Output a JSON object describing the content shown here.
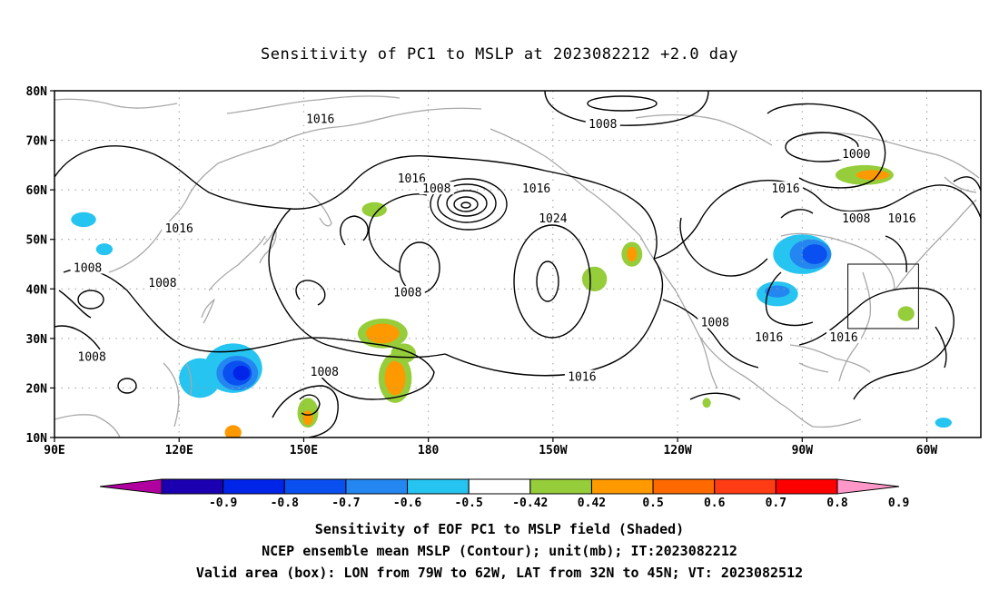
{
  "title": "Sensitivity of PC1 to MSLP at 2023082212 +2.0 day",
  "lat_labels": [
    "80N",
    "70N",
    "60N",
    "50N",
    "40N",
    "30N",
    "20N",
    "10N"
  ],
  "lon_labels": [
    "90E",
    "120E",
    "150E",
    "180",
    "150W",
    "120W",
    "90W",
    "60W"
  ],
  "contour_labels": [
    {
      "text": "1016",
      "lon": 154,
      "lat": 74
    },
    {
      "text": "1008",
      "lon": -138,
      "lat": 73
    },
    {
      "text": "1000",
      "lon": -77,
      "lat": 67
    },
    {
      "text": "1016",
      "lon": 176,
      "lat": 62
    },
    {
      "text": "1008",
      "lon": -178,
      "lat": 60
    },
    {
      "text": "1016",
      "lon": -154,
      "lat": 60
    },
    {
      "text": "1016",
      "lon": -94,
      "lat": 60
    },
    {
      "text": "1016",
      "lon": 120,
      "lat": 52
    },
    {
      "text": "1024",
      "lon": -150,
      "lat": 54
    },
    {
      "text": "1008",
      "lon": -77,
      "lat": 54
    },
    {
      "text": "1016",
      "lon": -66,
      "lat": 54
    },
    {
      "text": "1008",
      "lon": 98,
      "lat": 44
    },
    {
      "text": "1008",
      "lon": 116,
      "lat": 41
    },
    {
      "text": "1008",
      "lon": 175,
      "lat": 39
    },
    {
      "text": "1008",
      "lon": -111,
      "lat": 33
    },
    {
      "text": "1016",
      "lon": -98,
      "lat": 30
    },
    {
      "text": "1016",
      "lon": -80,
      "lat": 30
    },
    {
      "text": "1008",
      "lon": 99,
      "lat": 26
    },
    {
      "text": "1008",
      "lon": 155,
      "lat": 23
    },
    {
      "text": "1016",
      "lon": -143,
      "lat": 22
    }
  ],
  "valid_box": {
    "lon_min": -79,
    "lon_max": -62,
    "lat_min": 32,
    "lat_max": 45
  },
  "colorbar": {
    "colors": [
      "#b000a0",
      "#1a00b0",
      "#0024e8",
      "#0a50f0",
      "#2486f0",
      "#26c4f0",
      "#ffffff",
      "#96cd3a",
      "#ff9900",
      "#ff6a00",
      "#ff3c14",
      "#ff0000",
      "#ff98c8"
    ],
    "labels": [
      "-0.9",
      "-0.8",
      "-0.7",
      "-0.6",
      "-0.5",
      "-0.42",
      "0.42",
      "0.5",
      "0.6",
      "0.7",
      "0.8",
      "0.9"
    ]
  },
  "shading": [
    {
      "lon": 125,
      "lat": 22,
      "rx": 5,
      "ry": 4,
      "color": "#26c4f0"
    },
    {
      "lon": 133,
      "lat": 24,
      "rx": 7,
      "ry": 5,
      "color": "#26c4f0"
    },
    {
      "lon": 134,
      "lat": 23,
      "rx": 5,
      "ry": 3.5,
      "color": "#2486f0"
    },
    {
      "lon": 134,
      "lat": 23,
      "rx": 3.5,
      "ry": 2.5,
      "color": "#0a50f0"
    },
    {
      "lon": 135,
      "lat": 23,
      "rx": 2,
      "ry": 1.5,
      "color": "#0024e8"
    },
    {
      "lon": 97,
      "lat": 54,
      "rx": 3,
      "ry": 1.5,
      "color": "#26c4f0"
    },
    {
      "lon": 102,
      "lat": 48,
      "rx": 2,
      "ry": 1.2,
      "color": "#26c4f0"
    },
    {
      "lon": -90,
      "lat": 47,
      "rx": 7,
      "ry": 4,
      "color": "#26c4f0"
    },
    {
      "lon": -88,
      "lat": 47,
      "rx": 5,
      "ry": 3,
      "color": "#2486f0"
    },
    {
      "lon": -87,
      "lat": 47,
      "rx": 3,
      "ry": 2,
      "color": "#0a50f0"
    },
    {
      "lon": -96,
      "lat": 39,
      "rx": 5,
      "ry": 2.5,
      "color": "#26c4f0"
    },
    {
      "lon": -96,
      "lat": 39.5,
      "rx": 3,
      "ry": 1.2,
      "color": "#2486f0"
    },
    {
      "lon": -56,
      "lat": 13,
      "rx": 2,
      "ry": 1,
      "color": "#26c4f0"
    },
    {
      "lon": 169,
      "lat": 31,
      "rx": 6,
      "ry": 3,
      "color": "#96cd3a"
    },
    {
      "lon": 169,
      "lat": 31,
      "rx": 4,
      "ry": 2,
      "color": "#ff9900"
    },
    {
      "lon": 172,
      "lat": 22,
      "rx": 4,
      "ry": 5,
      "color": "#96cd3a"
    },
    {
      "lon": 172,
      "lat": 22,
      "rx": 2.5,
      "ry": 3.5,
      "color": "#ff9900"
    },
    {
      "lon": 174,
      "lat": 27,
      "rx": 3,
      "ry": 2,
      "color": "#96cd3a"
    },
    {
      "lon": 151,
      "lat": 15,
      "rx": 2.5,
      "ry": 3,
      "color": "#96cd3a"
    },
    {
      "lon": 151,
      "lat": 14,
      "rx": 1.2,
      "ry": 1.5,
      "color": "#ff9900"
    },
    {
      "lon": 133,
      "lat": 11,
      "rx": 2,
      "ry": 1.5,
      "color": "#ff9900"
    },
    {
      "lon": 167,
      "lat": 56,
      "rx": 3,
      "ry": 1.5,
      "color": "#96cd3a"
    },
    {
      "lon": -140,
      "lat": 42,
      "rx": 3,
      "ry": 2.5,
      "color": "#96cd3a"
    },
    {
      "lon": -131,
      "lat": 47,
      "rx": 2.5,
      "ry": 2.5,
      "color": "#96cd3a"
    },
    {
      "lon": -131,
      "lat": 47,
      "rx": 1.2,
      "ry": 1.5,
      "color": "#ff9900"
    },
    {
      "lon": -75,
      "lat": 63,
      "rx": 7,
      "ry": 2,
      "color": "#96cd3a"
    },
    {
      "lon": -73,
      "lat": 63,
      "rx": 4,
      "ry": 1,
      "color": "#ff9900"
    },
    {
      "lon": -65,
      "lat": 35,
      "rx": 2,
      "ry": 1.5,
      "color": "#96cd3a"
    },
    {
      "lon": -113,
      "lat": 17,
      "rx": 1,
      "ry": 1,
      "color": "#96cd3a"
    }
  ],
  "captions": [
    "Sensitivity of EOF PC1 to MSLP field (Shaded)",
    "NCEP ensemble mean MSLP (Contour); unit(mb); IT:2023082212",
    "Valid area (box): LON from 79W to 62W, LAT from 32N to 45N; VT: 2023082512"
  ]
}
